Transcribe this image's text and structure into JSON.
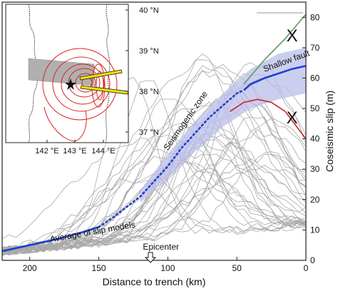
{
  "chart_data": {
    "type": "line",
    "xlabel": "Distance to trench (km)",
    "ylabel": "Coseismic slip (m)",
    "xlim": [
      220,
      0
    ],
    "ylim": [
      0,
      85
    ],
    "x_ticks": [
      200,
      150,
      100,
      50,
      0
    ],
    "y_ticks": [
      0,
      10,
      20,
      30,
      40,
      50,
      60,
      70,
      80
    ],
    "x_reversed": true,
    "grid": false,
    "series": [
      {
        "name": "Average of slip models",
        "color": "#1f3fcf",
        "x": [
          220,
          200,
          180,
          160,
          150,
          140,
          130,
          120,
          110,
          100,
          90,
          80,
          70,
          60,
          50,
          45,
          40,
          30,
          20,
          10,
          0
        ],
        "y": [
          3,
          5,
          7,
          9.5,
          11,
          14,
          17.5,
          21,
          26,
          31,
          37,
          42,
          47,
          51,
          55,
          56,
          58,
          60,
          61.5,
          63,
          64
        ]
      }
    ],
    "uncertainty_band": {
      "color": "#b9bde8",
      "x": [
        120,
        100,
        80,
        60,
        40,
        20,
        0
      ],
      "lower": [
        19,
        27,
        36,
        44,
        50,
        53,
        55
      ],
      "upper": [
        23,
        35,
        46,
        55,
        63,
        68,
        70
      ]
    },
    "extrapolations": [
      {
        "color": "#5a9a5a",
        "x": [
          45,
          30,
          15,
          0
        ],
        "y": [
          58,
          66,
          73,
          81
        ]
      },
      {
        "color": "#cc2222",
        "x": [
          55,
          45,
          35,
          25,
          15,
          5,
          0
        ],
        "y": [
          49,
          52,
          53,
          52,
          49,
          43,
          40
        ]
      }
    ],
    "markers": [
      {
        "symbol": "X",
        "x": 10,
        "y": 74
      },
      {
        "symbol": "X",
        "x": 10,
        "y": 47
      }
    ],
    "annotations": [
      {
        "text": "Average of slip models",
        "x": 185,
        "y": 6
      },
      {
        "text": "Seismogenic zone",
        "x": 100,
        "y": 36
      },
      {
        "text": "Shallow fault",
        "x": 30,
        "y": 62
      },
      {
        "text": "Epicenter",
        "x": 105,
        "y": -4
      }
    ],
    "inset_map": {
      "lon_ticks": [
        "142 °E",
        "143 °E",
        "144 °E"
      ],
      "lat_ticks": [
        "40 °N",
        "39 °N",
        "38 °N",
        "37 °N"
      ],
      "epicenter_marker": "star",
      "contour_color": "#e02020",
      "beam_color": "#f2e200"
    }
  }
}
